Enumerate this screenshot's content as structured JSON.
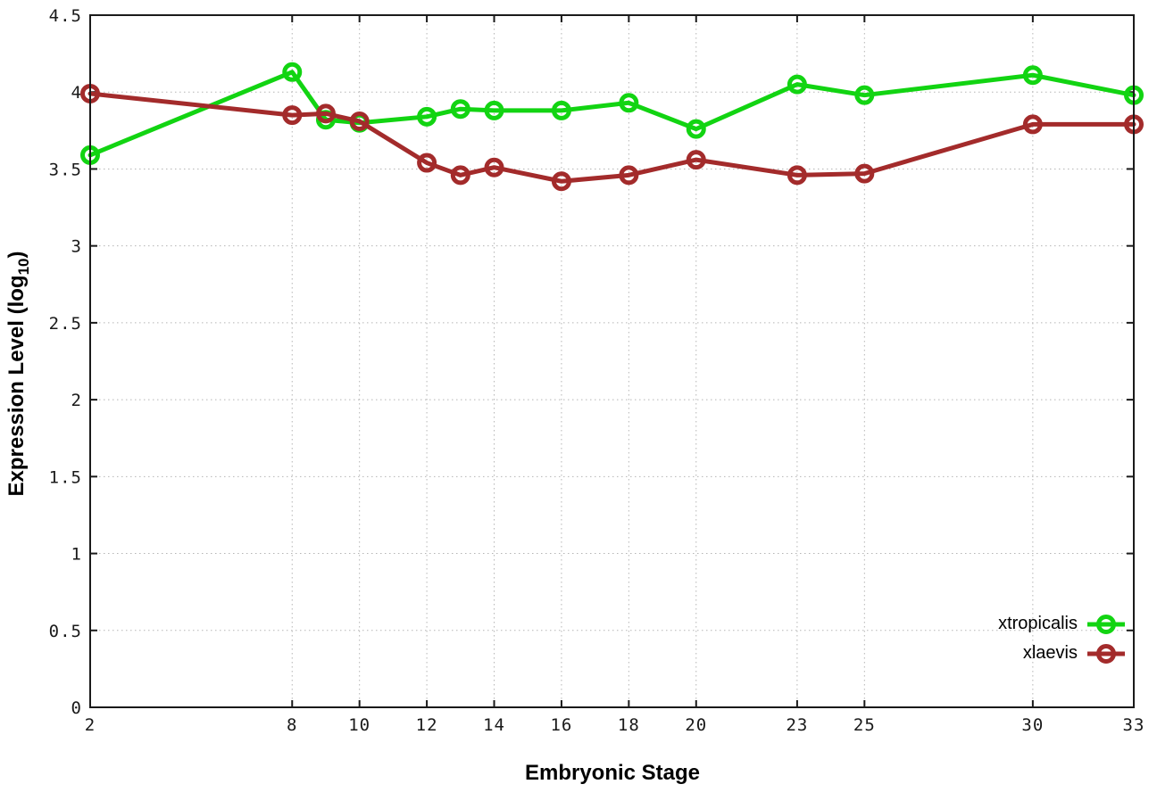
{
  "chart_data": {
    "type": "line",
    "title": "",
    "xlabel": "Embryonic Stage",
    "ylabel": "Expression Level (log10)",
    "ylabel_parts": {
      "pre": "Expression Level (log",
      "sub": "10",
      "post": ")"
    },
    "xlim": [
      2,
      33
    ],
    "ylim": [
      0,
      4.5
    ],
    "grid": true,
    "legend_position": "inside-bottom-right",
    "x": [
      2,
      8,
      9,
      10,
      12,
      13,
      14,
      16,
      18,
      20,
      23,
      25,
      30,
      33
    ],
    "xtick_labels": [
      "2",
      "8",
      "10",
      "12",
      "14",
      "16",
      "18",
      "20",
      "23",
      "25",
      "30",
      "33"
    ],
    "xticks": [
      2,
      8,
      10,
      12,
      14,
      16,
      18,
      20,
      23,
      25,
      30,
      33
    ],
    "yticks": [
      0,
      0.5,
      1,
      1.5,
      2,
      2.5,
      3,
      3.5,
      4,
      4.5
    ],
    "ytick_labels": [
      "0",
      "0.5",
      "1",
      "1.5",
      "2",
      "2.5",
      "3",
      "3.5",
      "4",
      "4.5"
    ],
    "series": [
      {
        "name": "xtropicalis",
        "color": "#12d412",
        "values": [
          3.59,
          4.13,
          3.82,
          3.8,
          3.84,
          3.89,
          3.88,
          3.88,
          3.93,
          3.76,
          4.05,
          3.98,
          4.11,
          3.98
        ]
      },
      {
        "name": "xlaevis",
        "color": "#a32b2b",
        "values": [
          3.99,
          3.85,
          3.86,
          3.81,
          3.54,
          3.46,
          3.51,
          3.42,
          3.46,
          3.56,
          3.46,
          3.47,
          3.79,
          3.79
        ]
      }
    ],
    "style": {
      "grid_color": "#b5b5b5",
      "border_color": "#1a1a1a",
      "line_width": 5,
      "marker_radius": 8.5
    }
  }
}
